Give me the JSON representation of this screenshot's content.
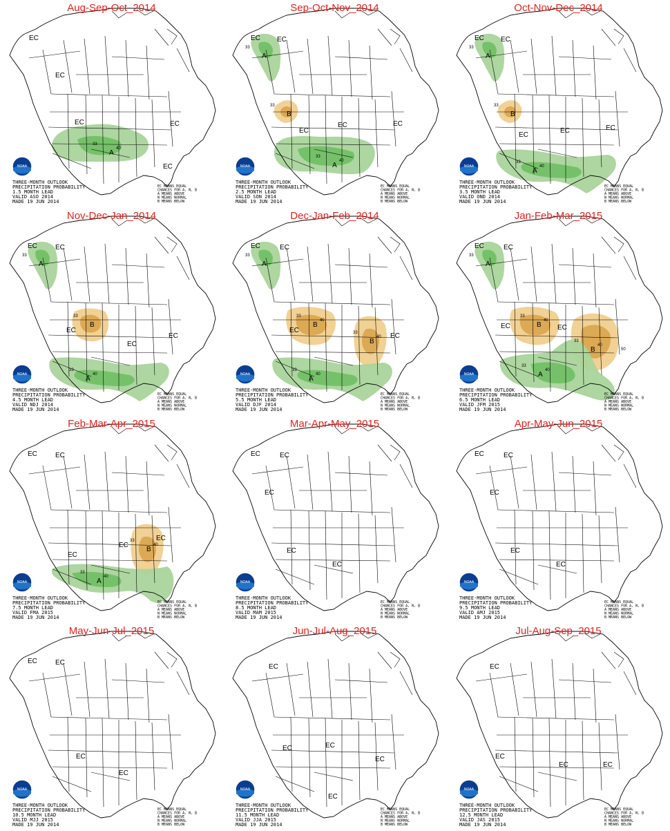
{
  "panels": [
    {
      "title": "Aug-Sep-Oct_2014",
      "caption": [
        "THREE-MONTH OUTLOOK",
        "PRECIPITATION PROBABILITY",
        "1.5 MONTH LEAD",
        "VALID ASO 2014",
        "MADE 19 JUN 2014"
      ],
      "regions": [
        {
          "cat": "A",
          "shape": "central-us",
          "label": "A",
          "contours": [
            "33",
            "40"
          ]
        }
      ],
      "ec_labels": [
        "EC",
        "EC",
        "EC",
        "EC",
        "EC"
      ]
    },
    {
      "title": "Sep-Oct-Nov_2014",
      "caption": [
        "THREE-MONTH OUTLOOK",
        "PRECIPITATION PROBABILITY",
        "2.5 MONTH LEAD",
        "VALID SON 2014",
        "MADE 19 JUN 2014"
      ],
      "regions": [
        {
          "cat": "A",
          "shape": "alaska-panhandle",
          "label": "A",
          "contours": [
            "33"
          ]
        },
        {
          "cat": "B",
          "shape": "pacific-nw-small",
          "label": "B",
          "contours": [
            "33"
          ]
        },
        {
          "cat": "A",
          "shape": "central-us-wide",
          "label": "A",
          "contours": [
            "33",
            "40"
          ]
        }
      ],
      "ec_labels": [
        "EC",
        "EC",
        "EC",
        "EC",
        "EC"
      ]
    },
    {
      "title": "Oct-Nov-Dec_2014",
      "caption": [
        "THREE-MONTH OUTLOOK",
        "PRECIPITATION PROBABILITY",
        "3.5 MONTH LEAD",
        "VALID OND 2014",
        "MADE 19 JUN 2014"
      ],
      "regions": [
        {
          "cat": "A",
          "shape": "alaska-panhandle",
          "label": "A",
          "contours": [
            "33"
          ]
        },
        {
          "cat": "B",
          "shape": "pacific-nw-small",
          "label": "B",
          "contours": [
            "33"
          ]
        },
        {
          "cat": "A",
          "shape": "southern-tier",
          "label": "A",
          "contours": [
            "33",
            "40"
          ]
        }
      ],
      "ec_labels": [
        "EC",
        "EC",
        "EC",
        "EC",
        "EC"
      ]
    },
    {
      "title": "Nov-Dec-Jan_2014",
      "caption": [
        "THREE-MONTH OUTLOOK",
        "PRECIPITATION PROBABILITY",
        "4.5 MONTH LEAD",
        "VALID NDJ 2014",
        "MADE 19 JUN 2014"
      ],
      "regions": [
        {
          "cat": "A",
          "shape": "alaska-panhandle",
          "label": "A",
          "contours": [
            "33"
          ]
        },
        {
          "cat": "B",
          "shape": "northern-rockies",
          "label": "B",
          "contours": [
            "33"
          ]
        },
        {
          "cat": "A",
          "shape": "southern-tier",
          "label": "A",
          "contours": [
            "33",
            "40"
          ]
        }
      ],
      "ec_labels": [
        "EC",
        "EC",
        "EC",
        "EC",
        "EC"
      ]
    },
    {
      "title": "Dec-Jan-Feb_2014",
      "caption": [
        "THREE-MONTH OUTLOOK",
        "PRECIPITATION PROBABILITY",
        "5.5 MONTH LEAD",
        "VALID DJF 2014",
        "MADE 19 JUN 2014"
      ],
      "regions": [
        {
          "cat": "A",
          "shape": "alaska-panhandle",
          "label": "A",
          "contours": [
            "33"
          ]
        },
        {
          "cat": "B",
          "shape": "northwest-large",
          "label": "B",
          "contours": [
            "33",
            "40"
          ]
        },
        {
          "cat": "B",
          "shape": "ohio-valley",
          "label": "B",
          "contours": [
            "33",
            "40"
          ]
        },
        {
          "cat": "A",
          "shape": "southern-tier",
          "label": "A",
          "contours": [
            "33",
            "40"
          ]
        }
      ],
      "ec_labels": [
        "EC",
        "EC",
        "EC",
        "EC"
      ]
    },
    {
      "title": "Jan-Feb-Mar_2015",
      "caption": [
        "THREE-MONTH OUTLOOK",
        "PRECIPITATION PROBABILITY",
        "6.5 MONTH LEAD",
        "VALID JFM 2015",
        "MADE 19 JUN 2014"
      ],
      "regions": [
        {
          "cat": "A",
          "shape": "alaska-panhandle",
          "label": "A",
          "contours": [
            "33"
          ]
        },
        {
          "cat": "B",
          "shape": "northwest-large",
          "label": "B",
          "contours": [
            "33",
            "40"
          ]
        },
        {
          "cat": "B",
          "shape": "ohio-valley-large",
          "label": "B",
          "contours": [
            "33",
            "40",
            "50"
          ]
        },
        {
          "cat": "A",
          "shape": "southern-tier-wide",
          "label": "A",
          "contours": [
            "33",
            "40"
          ]
        }
      ],
      "ec_labels": [
        "EC",
        "EC",
        "EC",
        "EC"
      ]
    },
    {
      "title": "Feb-Mar-Apr_2015",
      "caption": [
        "THREE-MONTH OUTLOOK",
        "PRECIPITATION PROBABILITY",
        "7.5 MONTH LEAD",
        "VALID FMA 2015",
        "MADE 19 JUN 2014"
      ],
      "regions": [
        {
          "cat": "B",
          "shape": "ohio-valley",
          "label": "B",
          "contours": [
            "33",
            "40"
          ]
        },
        {
          "cat": "A",
          "shape": "gulf-coast",
          "label": "A",
          "contours": [
            "33",
            "40"
          ]
        }
      ],
      "ec_labels": [
        "EC",
        "EC",
        "EC",
        "EC",
        "EC"
      ]
    },
    {
      "title": "Mar-Apr-May_2015",
      "caption": [
        "THREE-MONTH OUTLOOK",
        "PRECIPITATION PROBABILITY",
        "8.5 MONTH LEAD",
        "VALID MAM 2015",
        "MADE 19 JUN 2014"
      ],
      "regions": [],
      "ec_labels": [
        "EC",
        "EC",
        "EC",
        "EC",
        "EC"
      ]
    },
    {
      "title": "Apr-May-Jun_2015",
      "caption": [
        "THREE-MONTH OUTLOOK",
        "PRECIPITATION PROBABILITY",
        "9.5 MONTH LEAD",
        "VALID AMJ 2015",
        "MADE 19 JUN 2014"
      ],
      "regions": [],
      "ec_labels": [
        "EC",
        "EC",
        "EC",
        "EC",
        "EC"
      ]
    },
    {
      "title": "May-Jun-Jul_2015",
      "caption": [
        "THREE-MONTH OUTLOOK",
        "PRECIPITATION PROBABILITY",
        "10.5 MONTH LEAD",
        "VALID MJJ 2015",
        "MADE 19 JUN 2014"
      ],
      "regions": [],
      "ec_labels": [
        "EC",
        "EC",
        "EC",
        "EC"
      ]
    },
    {
      "title": "Jun-Jul-Aug_2015",
      "caption": [
        "THREE-MONTH OUTLOOK",
        "PRECIPITATION PROBABILITY",
        "11.5 MONTH LEAD",
        "VALID JJA 2015",
        "MADE 19 JUN 2014"
      ],
      "regions": [],
      "ec_labels": [
        "EC",
        "EC",
        "EC",
        "EC",
        "EC"
      ]
    },
    {
      "title": "Jul-Aug-Sep_2015",
      "caption": [
        "THREE-MONTH OUTLOOK",
        "PRECIPITATION PROBABILITY",
        "12.5 MONTH LEAD",
        "VALID JAS 2015",
        "MADE 19 JUN 2014"
      ],
      "regions": [],
      "ec_labels": [
        "EC",
        "EC",
        "EC",
        "EC"
      ]
    }
  ],
  "legend": [
    "EC MEANS EQUAL",
    "CHANCES FOR A, N, B",
    "A MEANS ABOVE",
    "N MEANS NORMAL",
    "B MEANS BELOW"
  ],
  "logo_text": "NOAA",
  "colors": {
    "above_light": "#a9d49b",
    "above_dark": "#6fbf63",
    "below_light": "#f0cf8e",
    "below_dark": "#d9a44c",
    "title": "#e8201c",
    "outline": "#000000"
  }
}
